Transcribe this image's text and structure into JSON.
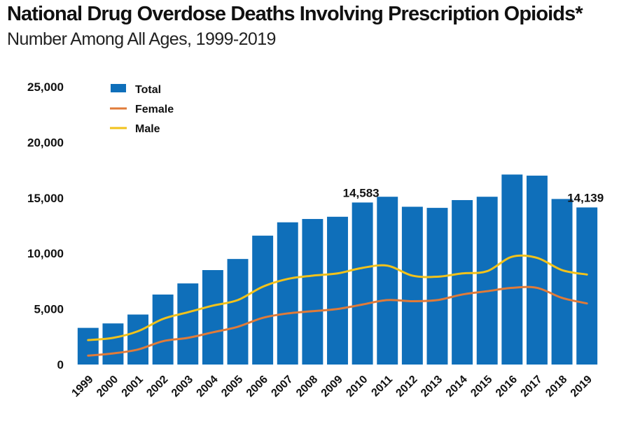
{
  "title": "National Drug Overdose Deaths Involving Prescription Opioids*",
  "subtitle": "Number Among All Ages, 1999-2019",
  "colors": {
    "total": "#0f6fba",
    "female": "#e07b39",
    "male": "#f2c21b"
  },
  "chart_data": {
    "type": "bar",
    "categories": [
      "1999",
      "2000",
      "2001",
      "2002",
      "2003",
      "2004",
      "2005",
      "2006",
      "2007",
      "2008",
      "2009",
      "2010",
      "2011",
      "2012",
      "2013",
      "2014",
      "2015",
      "2016",
      "2017",
      "2018",
      "2019"
    ],
    "series": [
      {
        "name": "Total",
        "type": "bar",
        "values": [
          3300,
          3700,
          4500,
          6300,
          7300,
          8500,
          9500,
          11600,
          12800,
          13100,
          13300,
          14583,
          15100,
          14200,
          14100,
          14800,
          15100,
          17100,
          17000,
          14900,
          14139
        ]
      },
      {
        "name": "Female",
        "type": "line",
        "values": [
          800,
          1000,
          1350,
          2100,
          2400,
          2900,
          3400,
          4200,
          4600,
          4800,
          5000,
          5400,
          5800,
          5700,
          5800,
          6300,
          6600,
          6900,
          6900,
          6000,
          5500
        ]
      },
      {
        "name": "Male",
        "type": "line",
        "values": [
          2200,
          2400,
          3000,
          4100,
          4700,
          5300,
          5800,
          7000,
          7700,
          8000,
          8200,
          8700,
          8900,
          8000,
          7900,
          8200,
          8400,
          9700,
          9600,
          8500,
          8100
        ]
      }
    ],
    "yticks": [
      "25,000",
      "20,000",
      "15,000",
      "10,000",
      "5,000",
      "0"
    ],
    "ylim": [
      0,
      25000
    ],
    "data_labels": [
      {
        "category": "2010",
        "text": "14,583"
      },
      {
        "category": "2019",
        "text": "14,139"
      }
    ],
    "legend": [
      "Total",
      "Female",
      "Male"
    ],
    "legend_position": "top-left",
    "grid": false
  }
}
